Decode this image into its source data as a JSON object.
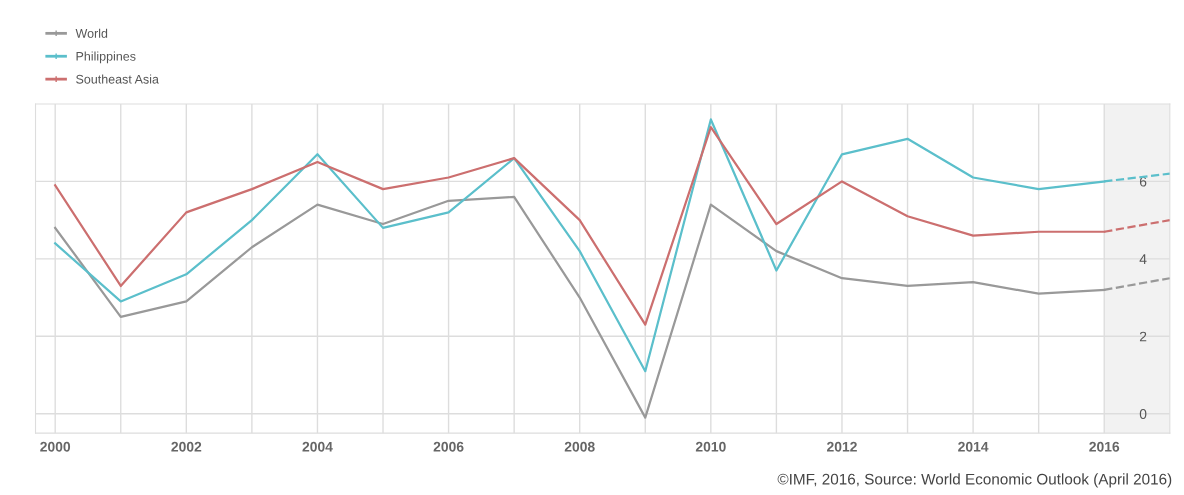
{
  "chart_data": {
    "type": "line",
    "x": [
      2000,
      2001,
      2002,
      2003,
      2004,
      2005,
      2006,
      2007,
      2008,
      2009,
      2010,
      2011,
      2012,
      2013,
      2014,
      2015,
      2016,
      2017
    ],
    "series": [
      {
        "name": "World",
        "color": "#999999",
        "values": [
          4.8,
          2.5,
          2.9,
          4.3,
          5.4,
          4.9,
          5.5,
          5.6,
          3.0,
          -0.1,
          5.4,
          4.2,
          3.5,
          3.3,
          3.4,
          3.1,
          3.2,
          null
        ]
      },
      {
        "name": "Philippines",
        "color": "#5bbfcb",
        "values": [
          4.4,
          2.9,
          3.6,
          5.0,
          6.7,
          4.8,
          5.2,
          6.6,
          4.2,
          1.1,
          7.6,
          3.7,
          6.7,
          7.1,
          6.1,
          5.8,
          6.0,
          null
        ]
      },
      {
        "name": "Southeast Asia",
        "color": "#cc6f6f",
        "values": [
          5.9,
          3.3,
          5.2,
          5.8,
          6.5,
          5.8,
          6.1,
          6.6,
          5.0,
          2.3,
          7.4,
          4.9,
          6.0,
          5.1,
          4.6,
          4.7,
          4.7,
          null
        ]
      },
      {
        "color": "#999999",
        "values": [
          null,
          null,
          null,
          null,
          null,
          null,
          null,
          null,
          null,
          null,
          null,
          null,
          null,
          null,
          null,
          null,
          3.2,
          3.5
        ],
        "line_style": "dashed"
      },
      {
        "color": "#5bbfcb",
        "values": [
          null,
          null,
          null,
          null,
          null,
          null,
          null,
          null,
          null,
          null,
          null,
          null,
          null,
          null,
          null,
          null,
          6.0,
          6.2
        ],
        "line_style": "dashed"
      },
      {
        "color": "#cc6f6f",
        "values": [
          null,
          null,
          null,
          null,
          null,
          null,
          null,
          null,
          null,
          null,
          null,
          null,
          null,
          null,
          null,
          null,
          4.7,
          5.0
        ],
        "line_style": "dashed"
      }
    ],
    "xlim": [
      1999.7,
      2017
    ],
    "xticks": [
      2000,
      {
        "value": 2001,
        "label": null
      },
      2002,
      {
        "value": 2003,
        "label": null
      },
      2004,
      {
        "value": 2005,
        "label": null
      },
      2006,
      {
        "value": 2007,
        "label": null
      },
      2008,
      {
        "value": 2009,
        "label": null
      },
      2010,
      {
        "value": 2011,
        "label": null
      },
      2012,
      {
        "value": 2013,
        "label": null
      },
      2014,
      {
        "value": 2015,
        "label": null
      },
      2016
    ],
    "ylim": [
      -0.5,
      8
    ],
    "yticks": [
      0,
      2,
      4,
      6
    ],
    "bands": [
      {
        "axis": "x",
        "from": 2016,
        "to": 2017,
        "color": "#f2f2f2"
      }
    ],
    "grid": true,
    "legend": "top left",
    "line_style": "solid",
    "marker": "none",
    "annotations": [
      "©IMF, 2016, Source: World Economic Outlook (April 2016)"
    ]
  }
}
